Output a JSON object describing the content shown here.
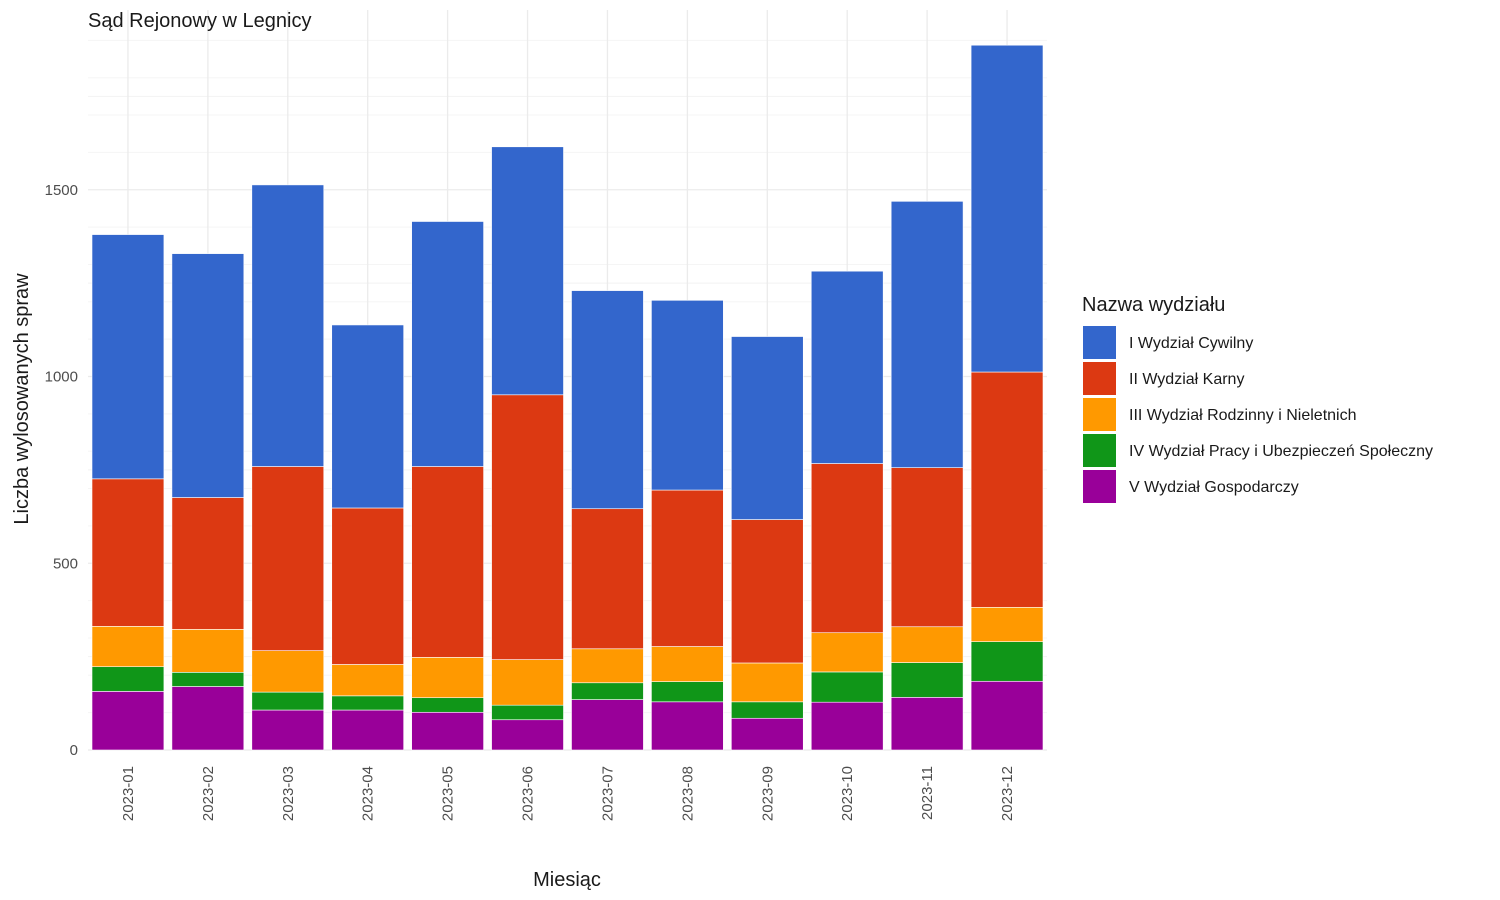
{
  "chart_data": {
    "type": "bar",
    "stacked": true,
    "title": "Sąd Rejonowy w Legnicy",
    "xlabel": "Miesiąc",
    "ylabel": "Liczba wylosowanych spraw",
    "ylim": [
      0,
      1900
    ],
    "yticks": [
      0,
      500,
      1000,
      1500
    ],
    "grid": true,
    "legend_position": "right",
    "legend_title": "Nazwa wydziału",
    "categories": [
      "2023-01",
      "2023-02",
      "2023-03",
      "2023-04",
      "2023-05",
      "2023-06",
      "2023-07",
      "2023-08",
      "2023-09",
      "2023-10",
      "2023-11",
      "2023-12"
    ],
    "series": [
      {
        "name": "V Wydział Gospodarczy",
        "color": "#990099",
        "values": [
          157,
          170,
          107,
          107,
          101,
          81,
          135,
          129,
          85,
          128,
          141,
          184
        ]
      },
      {
        "name": "IV Wydział Pracy i Ubezpieczeń Społeczny",
        "color": "#109618",
        "values": [
          66,
          38,
          48,
          38,
          39,
          39,
          45,
          54,
          44,
          81,
          93,
          106
        ]
      },
      {
        "name": "III Wydział Rodzinny i Nieletnich",
        "color": "#FF9900",
        "values": [
          108,
          115,
          111,
          84,
          108,
          122,
          91,
          94,
          104,
          105,
          96,
          92
        ]
      },
      {
        "name": "II Wydział Karny",
        "color": "#DC3912",
        "values": [
          395,
          353,
          493,
          419,
          511,
          709,
          375,
          419,
          384,
          453,
          426,
          630
        ]
      },
      {
        "name": "I Wydział Cywilny",
        "color": "#3366CC",
        "values": [
          654,
          653,
          754,
          490,
          656,
          664,
          584,
          508,
          490,
          515,
          713,
          875
        ]
      }
    ],
    "legend_order": [
      "I Wydział Cywilny",
      "II Wydział Karny",
      "III Wydział Rodzinny i Nieletnich",
      "IV Wydział Pracy i Ubezpieczeń Społeczny",
      "V Wydział Gospodarczy"
    ]
  }
}
